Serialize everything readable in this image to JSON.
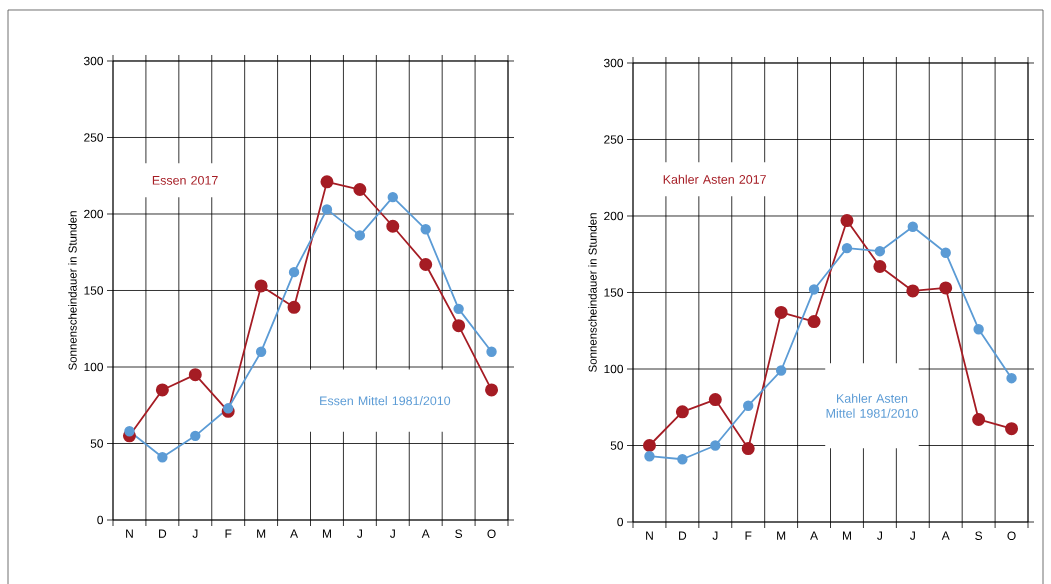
{
  "chart_data": [
    {
      "type": "line",
      "categories": [
        "N",
        "D",
        "J",
        "F",
        "M",
        "A",
        "M",
        "J",
        "J",
        "A",
        "S",
        "O"
      ],
      "ylabel": "Sonnenscheindauer in Stunden",
      "ylim": [
        0,
        300
      ],
      "yticks": [
        0,
        50,
        100,
        150,
        200,
        250,
        300
      ],
      "grid": true,
      "marker": "circle",
      "line_style": "solid",
      "series": [
        {
          "name": "Essen 2017",
          "color": "#a51c24",
          "values": [
            55,
            85,
            95,
            71,
            153,
            139,
            221,
            216,
            192,
            167,
            127,
            85
          ]
        },
        {
          "name": "Essen Mittel 1981/2010",
          "color": "#5b9bd5",
          "values": [
            58,
            41,
            55,
            73,
            110,
            162,
            203,
            186,
            211,
            190,
            138,
            110
          ]
        }
      ]
    },
    {
      "type": "line",
      "categories": [
        "N",
        "D",
        "J",
        "F",
        "M",
        "A",
        "M",
        "J",
        "J",
        "A",
        "S",
        "O"
      ],
      "ylabel": "Sonnenscheindauer in Stunden",
      "ylim": [
        0,
        300
      ],
      "yticks": [
        0,
        50,
        100,
        150,
        200,
        250,
        300
      ],
      "grid": true,
      "marker": "circle",
      "line_style": "solid",
      "series": [
        {
          "name": "Kahler Asten 2017",
          "color": "#a51c24",
          "values": [
            50,
            72,
            80,
            48,
            137,
            131,
            197,
            167,
            151,
            153,
            67,
            61
          ]
        },
        {
          "name": "Kahler Asten Mittel 1981/2010",
          "color": "#5b9bd5",
          "values": [
            43,
            41,
            50,
            76,
            99,
            152,
            179,
            177,
            193,
            176,
            126,
            94
          ]
        }
      ]
    }
  ]
}
